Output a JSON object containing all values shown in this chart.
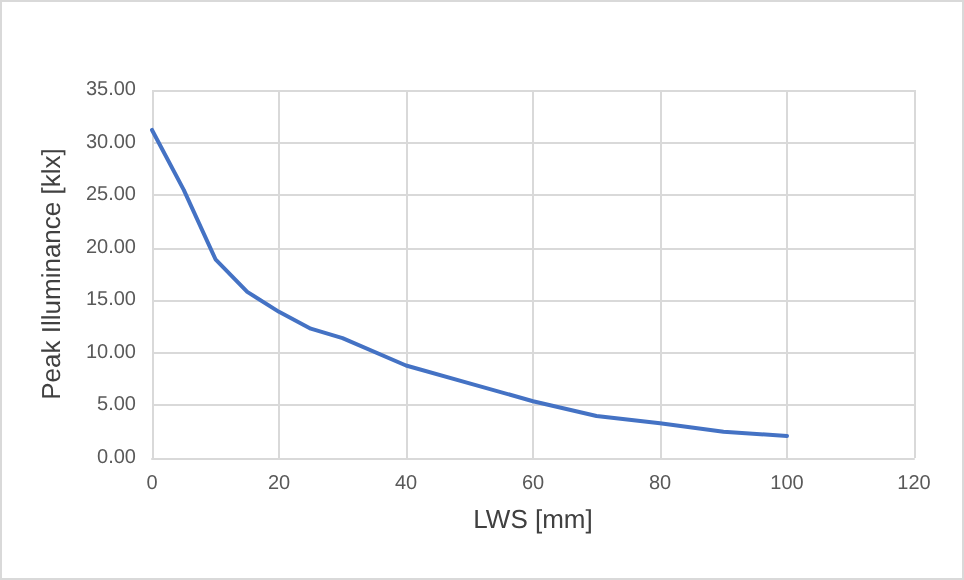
{
  "chart_data": {
    "type": "line",
    "xlabel": "LWS [mm]",
    "ylabel": "Peak Illuminance [klx]",
    "x": [
      0,
      5,
      10,
      15,
      20,
      25,
      30,
      40,
      50,
      60,
      70,
      80,
      90,
      100
    ],
    "series": [
      {
        "color": "#4472c4",
        "values": [
          31.2,
          25.5,
          18.9,
          15.8,
          13.9,
          12.3,
          11.4,
          8.8,
          7.1,
          5.4,
          4.0,
          3.3,
          2.5,
          2.1
        ]
      }
    ],
    "xlim": [
      0,
      120
    ],
    "xticks": [
      0,
      20,
      40,
      60,
      80,
      100,
      120
    ],
    "ylim": [
      0,
      35
    ],
    "yticks": [
      {
        "value": 0,
        "label": "0.00"
      },
      {
        "value": 5,
        "label": "5.00"
      },
      {
        "value": 10,
        "label": "10.00"
      },
      {
        "value": 15,
        "label": "15.00"
      },
      {
        "value": 20,
        "label": "20.00"
      },
      {
        "value": 25,
        "label": "25.00"
      },
      {
        "value": 30,
        "label": "30.00"
      },
      {
        "value": 35,
        "label": "35.00"
      }
    ],
    "grid": true,
    "marker": "none",
    "line_style": "solid"
  }
}
